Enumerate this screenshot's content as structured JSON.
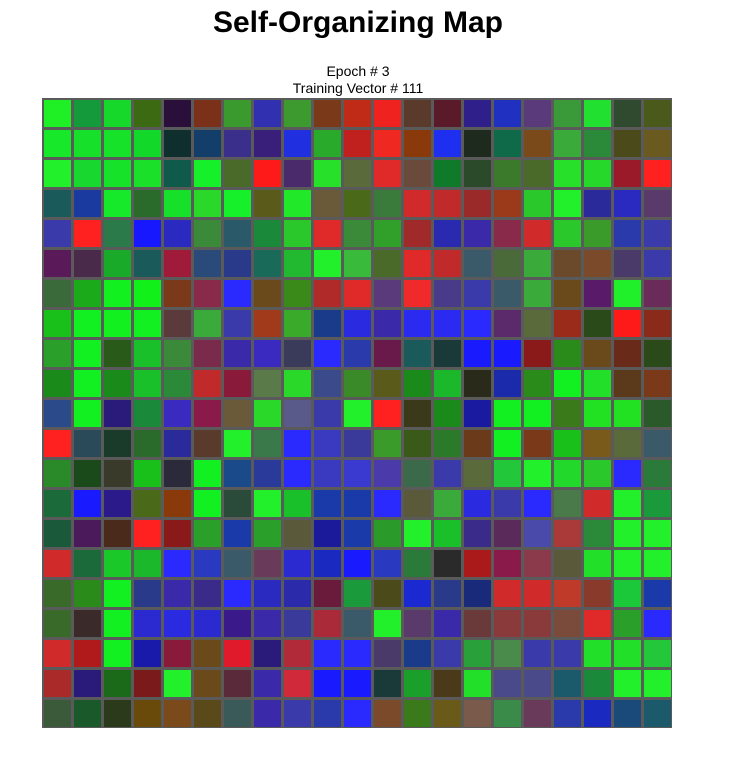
{
  "title": "Self-Organizing Map",
  "epoch_text": "Epoch # 3",
  "vector_text": "Training Vector # 111",
  "colors": {
    "background": "#ffffff",
    "grid_border": "#5a5a5a"
  },
  "grid": {
    "rows": 21,
    "cols": 21,
    "cells": [
      [
        "#1ef025",
        "#149a3a",
        "#16d82a",
        "#3b6a12",
        "#2a0f3a",
        "#7a3019",
        "#3a9a2e",
        "#3030b0",
        "#3c9a2e",
        "#7a3a1a",
        "#c02b17",
        "#f0221f",
        "#5a3a2a",
        "#5a1a2a",
        "#2f1f8a",
        "#2030c0",
        "#5a3a7a",
        "#3a9a3a",
        "#22e030",
        "#2f4a2f",
        "#4a5a1a"
      ],
      [
        "#18e82a",
        "#16e02a",
        "#16e22a",
        "#12d82a",
        "#0f2e2e",
        "#143e6a",
        "#3a2f8a",
        "#3a1f7a",
        "#2030e0",
        "#2aaa2a",
        "#c0201e",
        "#f02822",
        "#8a3a0a",
        "#1f2ff0",
        "#1f2a1f",
        "#0f6a4a",
        "#7a4a1a",
        "#3aaa3a",
        "#2a8a3a",
        "#4a4a1a",
        "#6a5a1f"
      ],
      [
        "#22f02a",
        "#18d830",
        "#16e22a",
        "#1ae02a",
        "#0f5a4a",
        "#16f02a",
        "#4a6a2a",
        "#ff1a1a",
        "#4a2a6a",
        "#26e02a",
        "#5a6a3a",
        "#e02a2a",
        "#6a4a3a",
        "#0f7a2a",
        "#2a4a2a",
        "#3a7a2a",
        "#4a6a2a",
        "#26e02a",
        "#26d82a",
        "#9a1a2a",
        "#ff2020"
      ],
      [
        "#1a5a5a",
        "#1a3aa0",
        "#16e82a",
        "#2a6a2a",
        "#16e02a",
        "#2ad82a",
        "#16f02a",
        "#5a5a1a",
        "#22e82a",
        "#6a5a3a",
        "#4a6a1a",
        "#3a7a3a",
        "#d02a2a",
        "#c02a2a",
        "#9a2a2a",
        "#9a3a1a",
        "#2ac82a",
        "#22f02a",
        "#2a2a9a",
        "#2a2ac0",
        "#5a3a6a"
      ],
      [
        "#3a3aaa",
        "#ff2020",
        "#2a7a4a",
        "#1818ff",
        "#2a2ac0",
        "#3a8a3a",
        "#2a5a6a",
        "#1a8a3a",
        "#2ac82a",
        "#e02a2a",
        "#3a8a3a",
        "#30a02a",
        "#a02a2a",
        "#2a2ab0",
        "#3a2aaa",
        "#8a2a4a",
        "#d02a2a",
        "#2ac82a",
        "#3a9a2a",
        "#2a3aaa",
        "#3a3aaa"
      ],
      [
        "#5a1a5a",
        "#4a2a4a",
        "#1aaa2a",
        "#1a5a5a",
        "#a01a3a",
        "#2a4a7a",
        "#2a3a8a",
        "#1a6a5a",
        "#22b830",
        "#22f02a",
        "#3aba3a",
        "#4a6a2a",
        "#e02a2a",
        "#c02a2a",
        "#3a5a6a",
        "#4a6a3a",
        "#3aaa3a",
        "#6a4a2a",
        "#7a4a2a",
        "#4a3a6a",
        "#3a3aaa"
      ],
      [
        "#3a6a3a",
        "#1aaa1a",
        "#12f020",
        "#12f01a",
        "#7a3a1a",
        "#8a2a4a",
        "#2a2aff",
        "#6a4a1a",
        "#3a8a1a",
        "#b02a2a",
        "#e02a2a",
        "#5a3a7a",
        "#f02a2a",
        "#4a3a8a",
        "#3a3aaa",
        "#3a5a6a",
        "#3aaa3a",
        "#6a4a1a",
        "#5a1a6a",
        "#20f02a",
        "#6a2a5a"
      ],
      [
        "#1ac01a",
        "#12f022",
        "#12f020",
        "#12f022",
        "#5a3a3a",
        "#3aaa3a",
        "#3a3aaa",
        "#a03a1a",
        "#3aaa2a",
        "#1a3a8a",
        "#2a2ae0",
        "#3a2aaa",
        "#2a2af0",
        "#2a2af0",
        "#2a2aff",
        "#5a2a6a",
        "#5a6a3a",
        "#9a2a1a",
        "#2a4a1a",
        "#ff1a1a",
        "#8a2a1a"
      ],
      [
        "#2aa02a",
        "#12f022",
        "#2a5a1a",
        "#1ac02a",
        "#3a8a3a",
        "#7a2a4a",
        "#3a2aaa",
        "#3a2ac0",
        "#3a3a5a",
        "#2a2aff",
        "#2a3aaa",
        "#6a1a4a",
        "#1a5a5a",
        "#1a3a3a",
        "#1a1aff",
        "#1a1aff",
        "#8a1a1a",
        "#2a8a1a",
        "#6a4a1a",
        "#6a2a1a",
        "#2a4a1a"
      ],
      [
        "#1a8a1a",
        "#12f022",
        "#1a8a1a",
        "#1ac02a",
        "#2a8a3a",
        "#c02a2a",
        "#8a1a3a",
        "#5a7a4a",
        "#2ad82a",
        "#3a4a8a",
        "#3a8a2a",
        "#5a5a1a",
        "#1a8a1a",
        "#1ab82a",
        "#2a2a1a",
        "#1a2aaa",
        "#2a8a1a",
        "#12f022",
        "#22e02a",
        "#5a3a1a",
        "#7a3a1a"
      ],
      [
        "#2a4a8a",
        "#12f022",
        "#2a1a7a",
        "#1a8a3a",
        "#3a2ac0",
        "#8a1a4a",
        "#6a5a3a",
        "#2ad82a",
        "#5a5a8a",
        "#3a3aaa",
        "#22f02a",
        "#ff2020",
        "#3a3a1a",
        "#1a8a1a",
        "#1a1aa0",
        "#12f022",
        "#12f022",
        "#3a7a1a",
        "#22e022",
        "#22e022",
        "#2a5a2a"
      ],
      [
        "#ff2020",
        "#2a4a5a",
        "#1a3a2a",
        "#2a6a2a",
        "#2a2a9a",
        "#5a3a2a",
        "#22f02a",
        "#3a7a4a",
        "#2a2aff",
        "#3a3ac0",
        "#3a3a9a",
        "#3a9a2a",
        "#3a5a1a",
        "#2a7a2a",
        "#6a3a1a",
        "#12f022",
        "#7a3a1a",
        "#1ac01a",
        "#7a5a1a",
        "#5a6a3a",
        "#3a5a6a"
      ],
      [
        "#2a8a2a",
        "#1a4a1a",
        "#3a3a2a",
        "#1ac01a",
        "#2a2a3a",
        "#12f022",
        "#1a4a8a",
        "#2a3a9a",
        "#2a2aff",
        "#3a3ac0",
        "#3a3ad0",
        "#4a3aaa",
        "#3a6a4a",
        "#3a3aaa",
        "#5a6a3a",
        "#22c83a",
        "#22f02a",
        "#22d82a",
        "#2ac82a",
        "#2a2aff",
        "#2a7a3a"
      ],
      [
        "#1a6a3a",
        "#1a1aff",
        "#2a1a8a",
        "#4a6a1a",
        "#8a3a0a",
        "#12f022",
        "#2a4a3a",
        "#22f02a",
        "#1ac02a",
        "#1a3aaa",
        "#1a3aaa",
        "#2a2aff",
        "#5a5a3a",
        "#3aaa3a",
        "#2a2ae0",
        "#3a3aaa",
        "#2a2aff",
        "#4a7a4a",
        "#d02a2a",
        "#22f02a",
        "#1a9a3a"
      ],
      [
        "#1a5a3a",
        "#4a1a5a",
        "#4a2a1a",
        "#ff2020",
        "#8a1a1a",
        "#2aa02a",
        "#1a3aaa",
        "#2aa02a",
        "#5a5a3a",
        "#1a1a9a",
        "#1a3aaa",
        "#2a9a2a",
        "#22f02a",
        "#1ac02a",
        "#3a2a8a",
        "#5a2a5a",
        "#4a4aaa",
        "#aa3a3a",
        "#2a8a3a",
        "#22f02a",
        "#22f02a"
      ],
      [
        "#d02a2a",
        "#1a6a3a",
        "#1ac82a",
        "#1ab82a",
        "#2a2aff",
        "#2a3ac0",
        "#3a5a6a",
        "#6a3a5a",
        "#2a2ad0",
        "#1a2ac0",
        "#1a1aff",
        "#2a3ac0",
        "#2a7a3a",
        "#2a2a2a",
        "#aa1a1a",
        "#8a1a4a",
        "#8a3a4a",
        "#5a5a3a",
        "#22e02a",
        "#22f02a",
        "#22f02a"
      ],
      [
        "#3a6a2a",
        "#2a8a1a",
        "#12f022",
        "#2a3a8a",
        "#3a2aaa",
        "#3a2a8a",
        "#2a2aff",
        "#2a2ac0",
        "#2a2aaa",
        "#6a1a3a",
        "#1a9a3a",
        "#4a4a1a",
        "#1a2ad0",
        "#2a3a8a",
        "#1a2a7a",
        "#d02a2a",
        "#d02a2a",
        "#c03a2a",
        "#8a3a2a",
        "#1ac83a",
        "#1a3aaa"
      ],
      [
        "#3a6a2a",
        "#3a2a2a",
        "#12f022",
        "#2a2ad0",
        "#2a2ae0",
        "#2a2ad0",
        "#3a1a8a",
        "#3a2aaa",
        "#3a3a9a",
        "#aa2a3a",
        "#3a5a6a",
        "#22f02a",
        "#5a3a6a",
        "#3a2aaa",
        "#6a3a3a",
        "#8a3a3a",
        "#8a3a3a",
        "#7a4a3a",
        "#e02a2a",
        "#2aa02a",
        "#2a2aff"
      ],
      [
        "#d02a2a",
        "#b01a1a",
        "#12f022",
        "#1a1aaa",
        "#8a1a3a",
        "#6a4a1a",
        "#e01a2a",
        "#2a1a7a",
        "#b02a3a",
        "#2a2aff",
        "#2a2aff",
        "#4a3a6a",
        "#1a3a8a",
        "#3a3aaa",
        "#2aa03a",
        "#4a8a4a",
        "#3a3aaa",
        "#3a3aaa",
        "#22e02a",
        "#22e02a",
        "#22c83a"
      ],
      [
        "#aa2a2a",
        "#2a1a7a",
        "#1a6a1a",
        "#7a1a1a",
        "#22f02a",
        "#6a4a1a",
        "#5a2a3a",
        "#3a2aaa",
        "#d02a3a",
        "#1a1aff",
        "#1a1aff",
        "#1a3a3a",
        "#1aa02a",
        "#4a3a1a",
        "#22e02a",
        "#4a4a8a",
        "#4a4a8a",
        "#1a5a6a",
        "#1a8a3a",
        "#22f02a",
        "#22f02a"
      ],
      [
        "#3a5a3a",
        "#1a5a2a",
        "#2a3a1a",
        "#6a4a0a",
        "#7a4a1a",
        "#5a4a1a",
        "#3a5a5a",
        "#3a2aaa",
        "#3a3aaa",
        "#2a3aaa",
        "#2a2aff",
        "#7a4a2a",
        "#3a7a1a",
        "#6a5a1a",
        "#7a5a4a",
        "#3a8a4a",
        "#6a3a5a",
        "#2a3aaa",
        "#1a2ac0",
        "#1a4a7a",
        "#1a5a6a"
      ]
    ]
  }
}
